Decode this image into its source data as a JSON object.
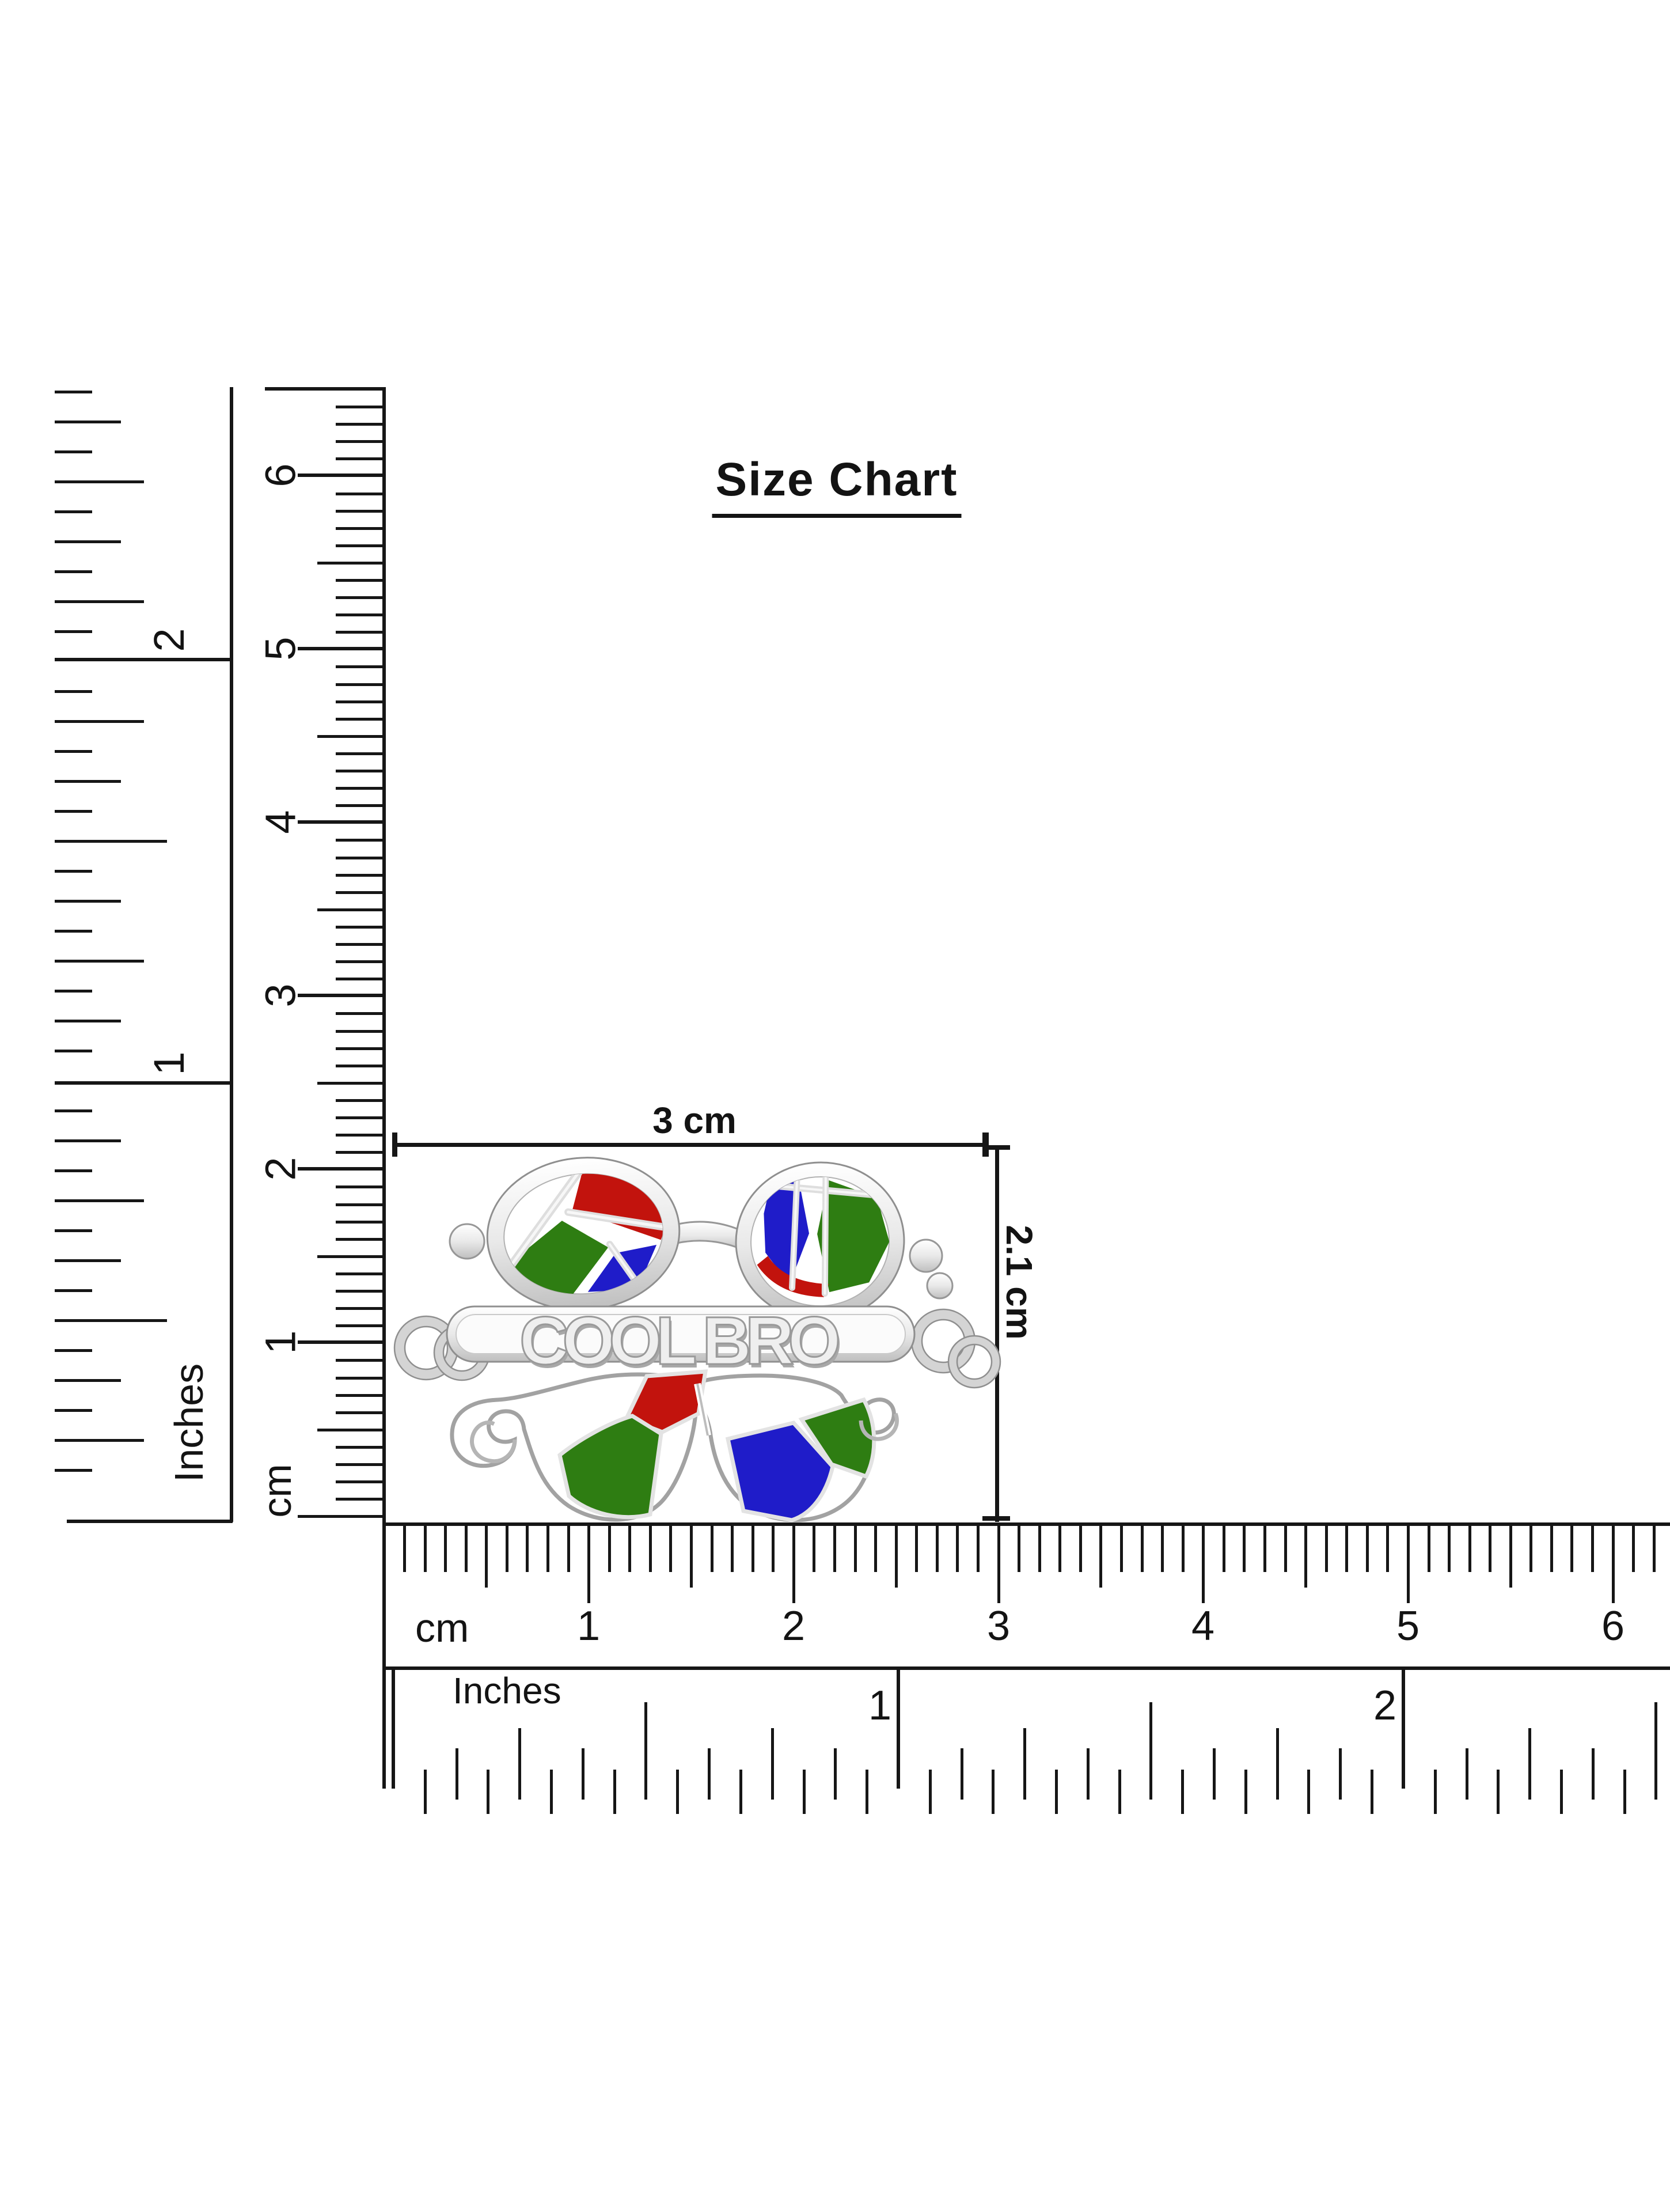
{
  "title": {
    "text": "Size Chart"
  },
  "dimensions": {
    "width_label": "3 cm",
    "height_label": "2.1 cm"
  },
  "pendant": {
    "text": "COOL BRO",
    "style": "silver mustache + round sunglasses charm",
    "enamel_colors": {
      "red": "#c2130d",
      "green": "#2e7d12",
      "blue": "#1f1cc9"
    },
    "metal_color": "#d9d9d9"
  },
  "rulers": {
    "vertical_inches": {
      "unit_label": "Inches",
      "numbers": [
        "2",
        "1"
      ]
    },
    "vertical_cm": {
      "unit_label": "cm",
      "numbers": [
        "6",
        "5",
        "4",
        "3",
        "2",
        "1"
      ]
    },
    "horizontal_cm": {
      "unit_label": "cm",
      "numbers": [
        "1",
        "2",
        "3",
        "4",
        "5",
        "6"
      ]
    },
    "horizontal_inches": {
      "unit_label": "Inches",
      "numbers": [
        "1",
        "2"
      ]
    }
  },
  "colors": {
    "ink": "#161616",
    "background": "#ffffff"
  }
}
